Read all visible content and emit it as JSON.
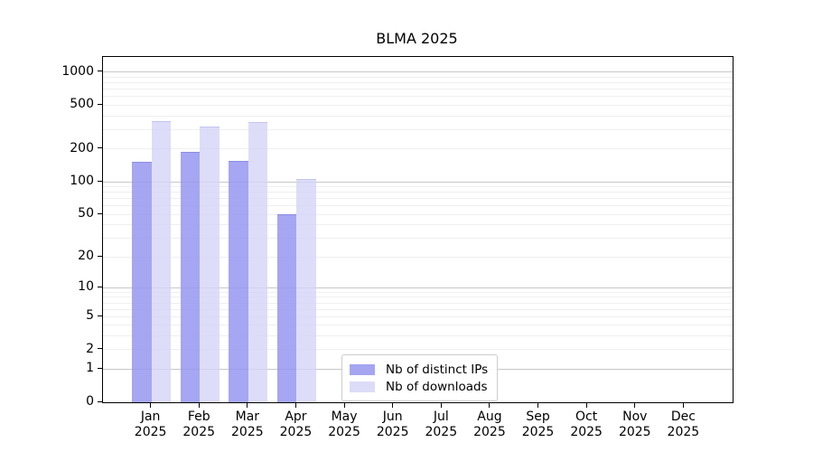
{
  "title": "BLMA 2025",
  "chart_data": {
    "type": "bar",
    "title": "BLMA 2025",
    "categories": [
      {
        "month": "Jan",
        "year": "2025"
      },
      {
        "month": "Feb",
        "year": "2025"
      },
      {
        "month": "Mar",
        "year": "2025"
      },
      {
        "month": "Apr",
        "year": "2025"
      },
      {
        "month": "May",
        "year": "2025"
      },
      {
        "month": "Jun",
        "year": "2025"
      },
      {
        "month": "Jul",
        "year": "2025"
      },
      {
        "month": "Aug",
        "year": "2025"
      },
      {
        "month": "Sep",
        "year": "2025"
      },
      {
        "month": "Oct",
        "year": "2025"
      },
      {
        "month": "Nov",
        "year": "2025"
      },
      {
        "month": "Dec",
        "year": "2025"
      }
    ],
    "series": [
      {
        "name": "Nb of distinct IPs",
        "fill": "rgba(150,150,240,0.85)",
        "edge": "rgba(110,110,210,0.45)",
        "swatch": "#a5a5f2",
        "values": [
          152,
          187,
          155,
          50,
          null,
          null,
          null,
          null,
          null,
          null,
          null,
          null
        ]
      },
      {
        "name": "Nb of downloads",
        "fill": "rgba(213,213,247,0.8)",
        "edge": "rgba(160,160,225,0.4)",
        "swatch": "#dcdcf8",
        "values": [
          360,
          322,
          354,
          107,
          null,
          null,
          null,
          null,
          null,
          null,
          null,
          null
        ]
      }
    ],
    "yscale": "log1p",
    "ylim": [
      0,
      1377
    ],
    "y_ticks": [
      0,
      1,
      2,
      5,
      10,
      20,
      50,
      100,
      200,
      500,
      1000
    ],
    "grid": {
      "major_lines": [
        1,
        10,
        100,
        1000
      ],
      "major_color": "#c8c8c8",
      "minor_mantissas": [
        2,
        3,
        4,
        5,
        6,
        7,
        8,
        9
      ],
      "minor_decades": [
        1,
        10,
        100
      ],
      "minor_color": "#efefef",
      "grid_on": true
    },
    "legend_position": "lower center",
    "bar_group_width_fraction": 0.8
  }
}
